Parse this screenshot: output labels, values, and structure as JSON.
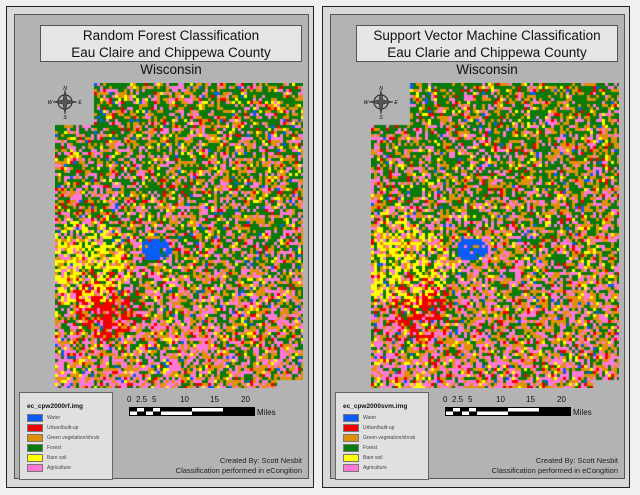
{
  "panels": [
    {
      "title_line1": "Random Forest Classification",
      "title_line2": "Eau Claire and Chippewa County Wisconsin",
      "legend_title": "ec_cpw2000rf.img",
      "created_by": "Created By: Scott Nesbit",
      "classification_note": "Classification performed in eCongition"
    },
    {
      "title_line1": "Support Vector Machine Classification",
      "title_line2": "Eau Clarie and Chippewa County Wisconsin",
      "legend_title": "ec_cpw2000svm.img",
      "created_by": "Created By: Scott Nesbit",
      "classification_note": "Classification performed in eCongition"
    }
  ],
  "legend_classes": [
    {
      "label": "Water",
      "color": "#0a5cf5"
    },
    {
      "label": "Urban/built-up",
      "color": "#f00000"
    },
    {
      "label": "Green vegetation/shrub",
      "color": "#e0900a"
    },
    {
      "label": "Forest",
      "color": "#0a7a0a"
    },
    {
      "label": "Bare soil",
      "color": "#ffff00"
    },
    {
      "label": "Agriculture",
      "color": "#ff78d8"
    }
  ],
  "scale": {
    "ticks": [
      "0",
      "2.5",
      "5",
      "10",
      "15",
      "20"
    ],
    "unit": "Miles"
  },
  "compass": {
    "n": "N",
    "s": "S",
    "e": "E",
    "w": "W"
  }
}
